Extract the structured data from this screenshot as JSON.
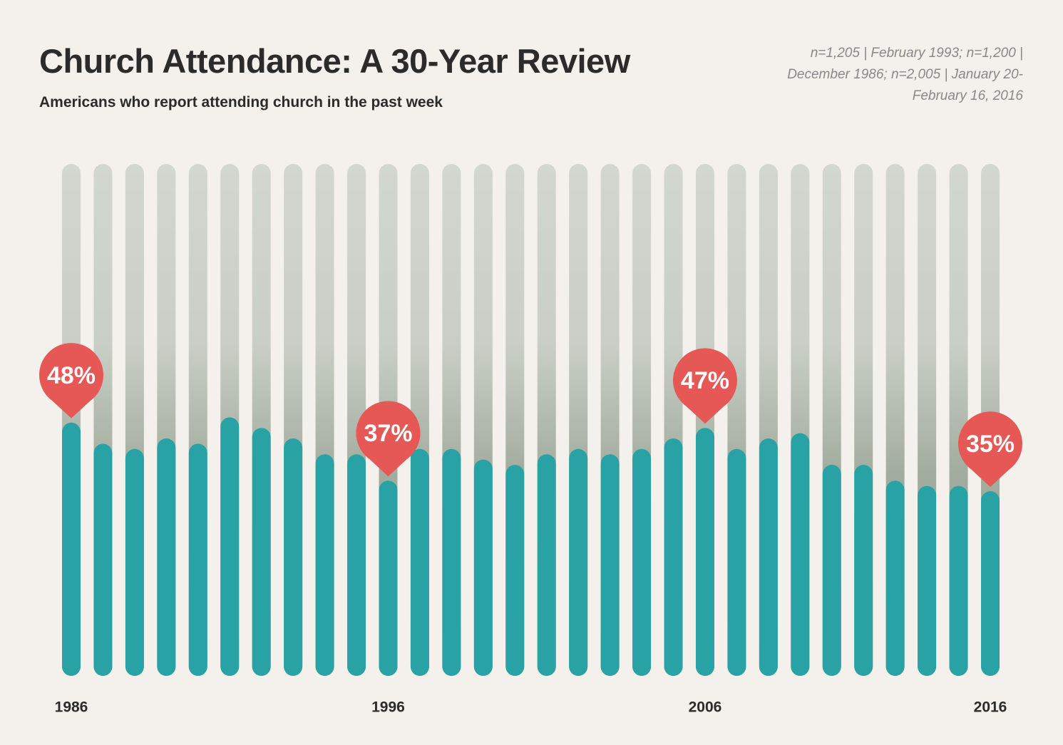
{
  "chart_data": {
    "type": "bar",
    "title": "Church Attendance: A 30-Year Review",
    "subtitle": "Americans who report attending church in the past week",
    "note": "n=1,205 | February 1993; n=1,200 | December 1986; n=2,005 | January 20-February 16, 2016",
    "categories": [
      "1986",
      null,
      null,
      null,
      null,
      null,
      null,
      null,
      null,
      null,
      "1996",
      null,
      null,
      null,
      null,
      null,
      null,
      null,
      null,
      null,
      "2006",
      null,
      null,
      null,
      null,
      null,
      null,
      null,
      null,
      "2016"
    ],
    "values": [
      48,
      44,
      43,
      45,
      44,
      49,
      47,
      45,
      42,
      42,
      37,
      43,
      43,
      41,
      40,
      42,
      43,
      42,
      43,
      45,
      47,
      43,
      45,
      46,
      40,
      40,
      37,
      36,
      36,
      35
    ],
    "value_labels": [
      "48%",
      null,
      null,
      null,
      null,
      null,
      null,
      null,
      null,
      null,
      "37%",
      null,
      null,
      null,
      null,
      null,
      null,
      null,
      null,
      null,
      "47%",
      null,
      null,
      null,
      null,
      null,
      null,
      null,
      null,
      "35%"
    ],
    "color": "#29a2a6",
    "label_color": "#e65856",
    "ylim": [
      0,
      100
    ]
  }
}
